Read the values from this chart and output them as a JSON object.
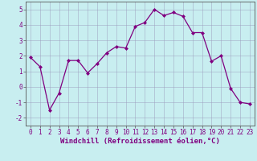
{
  "xlabel": "Windchill (Refroidissement éolien,°C)",
  "x": [
    0,
    1,
    2,
    3,
    4,
    5,
    6,
    7,
    8,
    9,
    10,
    11,
    12,
    13,
    14,
    15,
    16,
    17,
    18,
    19,
    20,
    21,
    22,
    23
  ],
  "y": [
    1.9,
    1.3,
    -1.5,
    -0.4,
    1.7,
    1.7,
    0.9,
    1.5,
    2.2,
    2.6,
    2.5,
    3.9,
    4.15,
    5.0,
    4.6,
    4.8,
    4.55,
    3.5,
    3.5,
    1.65,
    2.0,
    -0.1,
    -1.0,
    -1.1
  ],
  "line_color": "#800080",
  "marker_color": "#800080",
  "bg_color": "#c8eef0",
  "grid_color": "#9999bb",
  "ylim": [
    -2.5,
    5.5
  ],
  "xlim": [
    -0.5,
    23.5
  ],
  "yticks": [
    -2,
    -1,
    0,
    1,
    2,
    3,
    4,
    5
  ],
  "xticks": [
    0,
    1,
    2,
    3,
    4,
    5,
    6,
    7,
    8,
    9,
    10,
    11,
    12,
    13,
    14,
    15,
    16,
    17,
    18,
    19,
    20,
    21,
    22,
    23
  ],
  "tick_fontsize": 5.5,
  "xlabel_fontsize": 6.5
}
